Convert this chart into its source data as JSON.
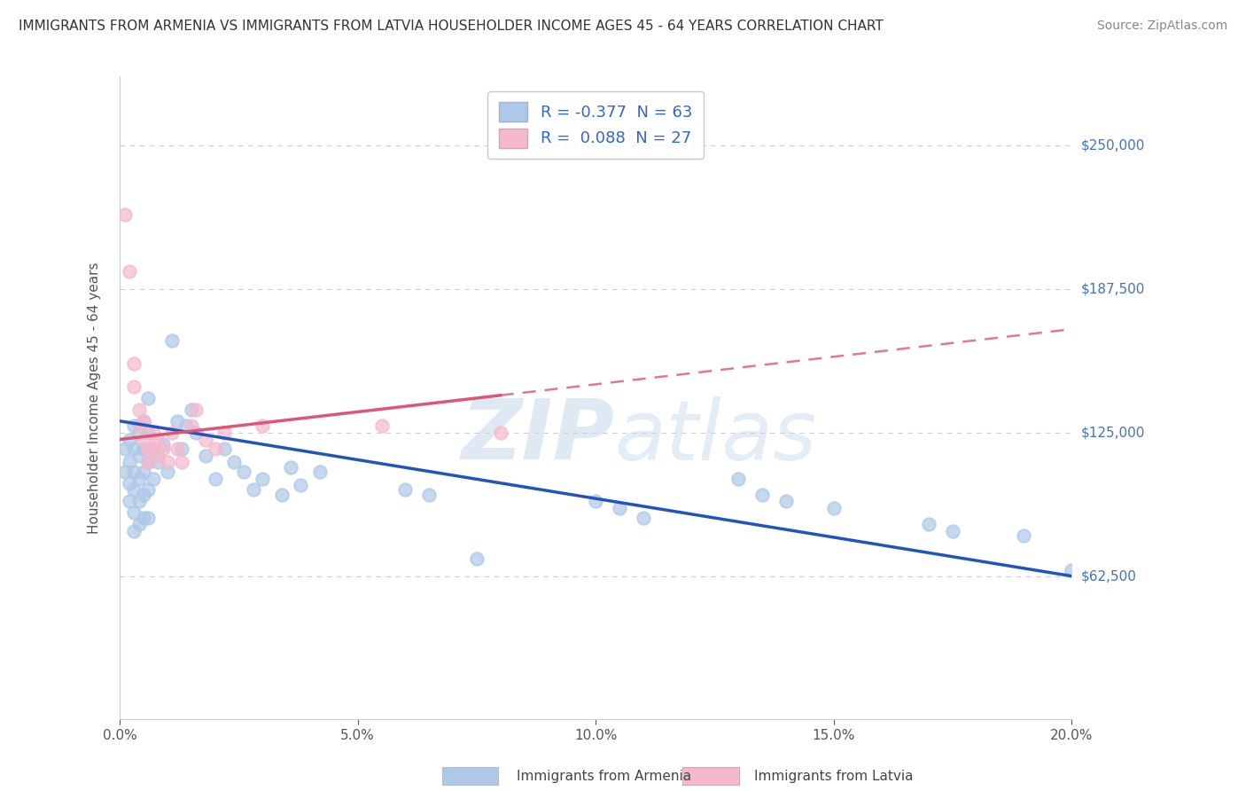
{
  "title": "IMMIGRANTS FROM ARMENIA VS IMMIGRANTS FROM LATVIA HOUSEHOLDER INCOME AGES 45 - 64 YEARS CORRELATION CHART",
  "source": "Source: ZipAtlas.com",
  "ylabel": "Householder Income Ages 45 - 64 years",
  "xlim": [
    0.0,
    0.2
  ],
  "ylim": [
    0,
    280000
  ],
  "yticks": [
    62500,
    125000,
    187500,
    250000
  ],
  "ytick_labels": [
    "$62,500",
    "$125,000",
    "$187,500",
    "$250,000"
  ],
  "xticks": [
    0.0,
    0.05,
    0.1,
    0.15,
    0.2
  ],
  "xtick_labels": [
    "0.0%",
    "5.0%",
    "10.0%",
    "15.0%",
    "20.0%"
  ],
  "armenia_color": "#adc8e8",
  "latvia_color": "#f5b8cc",
  "armenia_line_color": "#2255bb",
  "latvia_line_color": "#dd5577",
  "armenia_R": -0.377,
  "armenia_N": 63,
  "latvia_R": 0.088,
  "latvia_N": 27,
  "watermark_zip": "ZIP",
  "watermark_atlas": "atlas",
  "background_color": "#ffffff",
  "grid_color": "#ccccdd",
  "legend_text_color": "#3366cc",
  "title_color": "#333333",
  "source_color": "#888888",
  "ylabel_color": "#555555",
  "ytick_color": "#4472c4",
  "xtick_color": "#555555",
  "armenia_scatter": [
    [
      0.001,
      118000
    ],
    [
      0.001,
      108000
    ],
    [
      0.002,
      122000
    ],
    [
      0.002,
      112000
    ],
    [
      0.002,
      103000
    ],
    [
      0.002,
      95000
    ],
    [
      0.003,
      128000
    ],
    [
      0.003,
      118000
    ],
    [
      0.003,
      108000
    ],
    [
      0.003,
      100000
    ],
    [
      0.003,
      90000
    ],
    [
      0.003,
      82000
    ],
    [
      0.004,
      125000
    ],
    [
      0.004,
      115000
    ],
    [
      0.004,
      105000
    ],
    [
      0.004,
      95000
    ],
    [
      0.004,
      85000
    ],
    [
      0.005,
      130000
    ],
    [
      0.005,
      118000
    ],
    [
      0.005,
      108000
    ],
    [
      0.005,
      98000
    ],
    [
      0.005,
      88000
    ],
    [
      0.006,
      140000
    ],
    [
      0.006,
      125000
    ],
    [
      0.006,
      112000
    ],
    [
      0.006,
      100000
    ],
    [
      0.006,
      88000
    ],
    [
      0.007,
      118000
    ],
    [
      0.007,
      105000
    ],
    [
      0.008,
      112000
    ],
    [
      0.009,
      120000
    ],
    [
      0.01,
      108000
    ],
    [
      0.011,
      165000
    ],
    [
      0.012,
      130000
    ],
    [
      0.013,
      118000
    ],
    [
      0.014,
      128000
    ],
    [
      0.015,
      135000
    ],
    [
      0.016,
      125000
    ],
    [
      0.018,
      115000
    ],
    [
      0.02,
      105000
    ],
    [
      0.022,
      118000
    ],
    [
      0.024,
      112000
    ],
    [
      0.026,
      108000
    ],
    [
      0.028,
      100000
    ],
    [
      0.03,
      105000
    ],
    [
      0.034,
      98000
    ],
    [
      0.036,
      110000
    ],
    [
      0.038,
      102000
    ],
    [
      0.042,
      108000
    ],
    [
      0.06,
      100000
    ],
    [
      0.065,
      98000
    ],
    [
      0.075,
      70000
    ],
    [
      0.1,
      95000
    ],
    [
      0.105,
      92000
    ],
    [
      0.11,
      88000
    ],
    [
      0.13,
      105000
    ],
    [
      0.135,
      98000
    ],
    [
      0.14,
      95000
    ],
    [
      0.15,
      92000
    ],
    [
      0.17,
      85000
    ],
    [
      0.175,
      82000
    ],
    [
      0.19,
      80000
    ],
    [
      0.2,
      65000
    ]
  ],
  "latvia_scatter": [
    [
      0.001,
      220000
    ],
    [
      0.002,
      195000
    ],
    [
      0.003,
      155000
    ],
    [
      0.003,
      145000
    ],
    [
      0.004,
      135000
    ],
    [
      0.004,
      128000
    ],
    [
      0.005,
      130000
    ],
    [
      0.005,
      122000
    ],
    [
      0.006,
      118000
    ],
    [
      0.006,
      112000
    ],
    [
      0.007,
      125000
    ],
    [
      0.007,
      118000
    ],
    [
      0.008,
      122000
    ],
    [
      0.008,
      115000
    ],
    [
      0.009,
      118000
    ],
    [
      0.01,
      112000
    ],
    [
      0.011,
      125000
    ],
    [
      0.012,
      118000
    ],
    [
      0.013,
      112000
    ],
    [
      0.015,
      128000
    ],
    [
      0.016,
      135000
    ],
    [
      0.018,
      122000
    ],
    [
      0.02,
      118000
    ],
    [
      0.022,
      125000
    ],
    [
      0.03,
      128000
    ],
    [
      0.055,
      128000
    ],
    [
      0.08,
      125000
    ]
  ],
  "title_fontsize": 11,
  "axis_label_fontsize": 11,
  "tick_fontsize": 11,
  "legend_fontsize": 13,
  "source_fontsize": 10,
  "scatter_size": 110
}
